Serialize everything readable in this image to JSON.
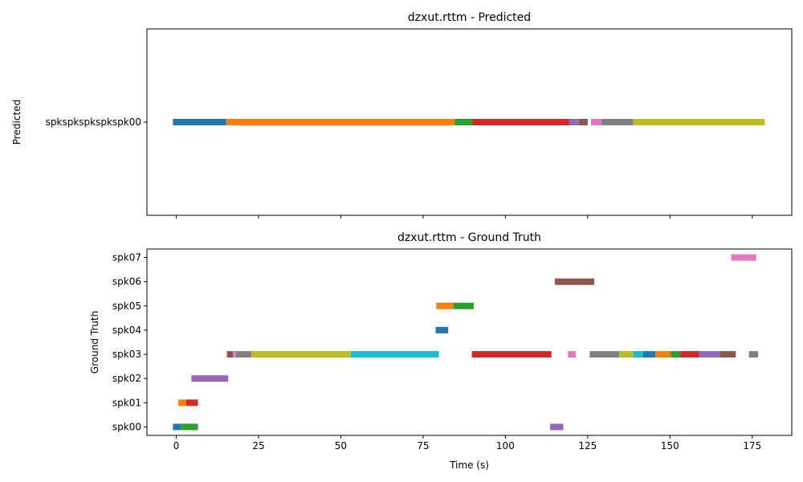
{
  "chart_data": [
    {
      "type": "timeline",
      "title": "dzxut.rttm - Predicted",
      "xlabel": "",
      "ylabel": "Predicted",
      "xlim": [
        -8.9,
        187
      ],
      "x_ticks": [
        0,
        25,
        50,
        75,
        100,
        125,
        150,
        175
      ],
      "show_x_tick_labels": false,
      "categories": [
        "spkspkspkspkspk00"
      ],
      "segments": [
        {
          "row": 0,
          "start": -1.0,
          "end": 15.2,
          "color": "#1f77b4"
        },
        {
          "row": 0,
          "start": 15.2,
          "end": 84.6,
          "color": "#ff7f0e"
        },
        {
          "row": 0,
          "start": 84.6,
          "end": 90.0,
          "color": "#2ca02c"
        },
        {
          "row": 0,
          "start": 90.0,
          "end": 119.4,
          "color": "#d62728"
        },
        {
          "row": 0,
          "start": 119.4,
          "end": 122.4,
          "color": "#9467bd"
        },
        {
          "row": 0,
          "start": 122.4,
          "end": 125.0,
          "color": "#8c564b"
        },
        {
          "row": 0,
          "start": 126.0,
          "end": 129.2,
          "color": "#e377c2"
        },
        {
          "row": 0,
          "start": 129.2,
          "end": 138.8,
          "color": "#7f7f7f"
        },
        {
          "row": 0,
          "start": 138.8,
          "end": 178.8,
          "color": "#bcbd22"
        }
      ]
    },
    {
      "type": "timeline",
      "title": "dzxut.rttm - Ground Truth",
      "xlabel": "Time (s)",
      "ylabel": "Ground Truth",
      "xlim": [
        -8.9,
        187
      ],
      "x_ticks": [
        0,
        25,
        50,
        75,
        100,
        125,
        150,
        175
      ],
      "show_x_tick_labels": true,
      "categories": [
        "spk00",
        "spk01",
        "spk02",
        "spk03",
        "spk04",
        "spk05",
        "spk06",
        "spk07"
      ],
      "segments": [
        {
          "row": 0,
          "start": -1.0,
          "end": 1.4,
          "color": "#1f77b4"
        },
        {
          "row": 0,
          "start": 1.4,
          "end": 6.6,
          "color": "#2ca02c"
        },
        {
          "row": 0,
          "start": 113.6,
          "end": 117.6,
          "color": "#9467bd"
        },
        {
          "row": 1,
          "start": 0.6,
          "end": 3.0,
          "color": "#ff7f0e"
        },
        {
          "row": 1,
          "start": 3.0,
          "end": 6.6,
          "color": "#d62728"
        },
        {
          "row": 2,
          "start": 4.6,
          "end": 15.8,
          "color": "#9467bd"
        },
        {
          "row": 3,
          "start": 15.4,
          "end": 17.2,
          "color": "#8c564b"
        },
        {
          "row": 3,
          "start": 17.2,
          "end": 18.2,
          "color": "#e377c2"
        },
        {
          "row": 3,
          "start": 18.2,
          "end": 22.8,
          "color": "#7f7f7f"
        },
        {
          "row": 3,
          "start": 22.8,
          "end": 53.0,
          "color": "#bcbd22"
        },
        {
          "row": 3,
          "start": 53.0,
          "end": 79.8,
          "color": "#17becf"
        },
        {
          "row": 3,
          "start": 89.8,
          "end": 114.0,
          "color": "#d62728"
        },
        {
          "row": 3,
          "start": 119.0,
          "end": 121.4,
          "color": "#e377c2"
        },
        {
          "row": 3,
          "start": 125.6,
          "end": 134.6,
          "color": "#7f7f7f"
        },
        {
          "row": 3,
          "start": 134.6,
          "end": 138.8,
          "color": "#bcbd22"
        },
        {
          "row": 3,
          "start": 138.8,
          "end": 141.8,
          "color": "#17becf"
        },
        {
          "row": 3,
          "start": 141.8,
          "end": 145.6,
          "color": "#1f77b4"
        },
        {
          "row": 3,
          "start": 145.6,
          "end": 150.2,
          "color": "#ff7f0e"
        },
        {
          "row": 3,
          "start": 150.2,
          "end": 153.2,
          "color": "#2ca02c"
        },
        {
          "row": 3,
          "start": 153.2,
          "end": 158.8,
          "color": "#d62728"
        },
        {
          "row": 3,
          "start": 158.8,
          "end": 165.2,
          "color": "#9467bd"
        },
        {
          "row": 3,
          "start": 165.2,
          "end": 170.0,
          "color": "#8c564b"
        },
        {
          "row": 3,
          "start": 174.0,
          "end": 176.8,
          "color": "#7f7f7f"
        },
        {
          "row": 4,
          "start": 78.8,
          "end": 82.6,
          "color": "#1f77b4"
        },
        {
          "row": 5,
          "start": 79.0,
          "end": 84.2,
          "color": "#ff7f0e"
        },
        {
          "row": 5,
          "start": 84.2,
          "end": 90.4,
          "color": "#2ca02c"
        },
        {
          "row": 6,
          "start": 115.0,
          "end": 127.0,
          "color": "#8c564b"
        },
        {
          "row": 7,
          "start": 168.6,
          "end": 176.2,
          "color": "#e377c2"
        }
      ]
    }
  ]
}
